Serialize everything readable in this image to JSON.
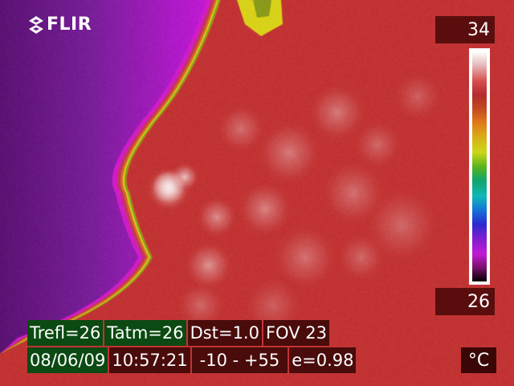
{
  "brand": {
    "name": "FLIR"
  },
  "scale": {
    "max": "34",
    "min": "26",
    "unit": "°C",
    "palette": [
      "#ffffff",
      "#e6b9b9",
      "#d74c4c",
      "#b52b2b",
      "#c44a1f",
      "#e07a18",
      "#d9b21a",
      "#c8d81a",
      "#5bb31a",
      "#11a56a",
      "#10b7b8",
      "#1473d8",
      "#2a2ad0",
      "#7a1fd0",
      "#c21ad4",
      "#7a0f6a",
      "#000000"
    ]
  },
  "readout": {
    "trefl": "Trefl=26",
    "tatm": "Tatm=26",
    "dst": "Dst=1.0",
    "fov": "FOV 23",
    "date": "08/06/09",
    "time": "10:57:21",
    "range": "-10 -  +55",
    "emissivity": "e=0.98"
  },
  "colors": {
    "background_purple": "#7a1f9a",
    "magenta": "#c21ad4",
    "body_red": "#c23434",
    "hot_white": "#f6e8e8",
    "edge_yellow": "#d9d21a"
  }
}
